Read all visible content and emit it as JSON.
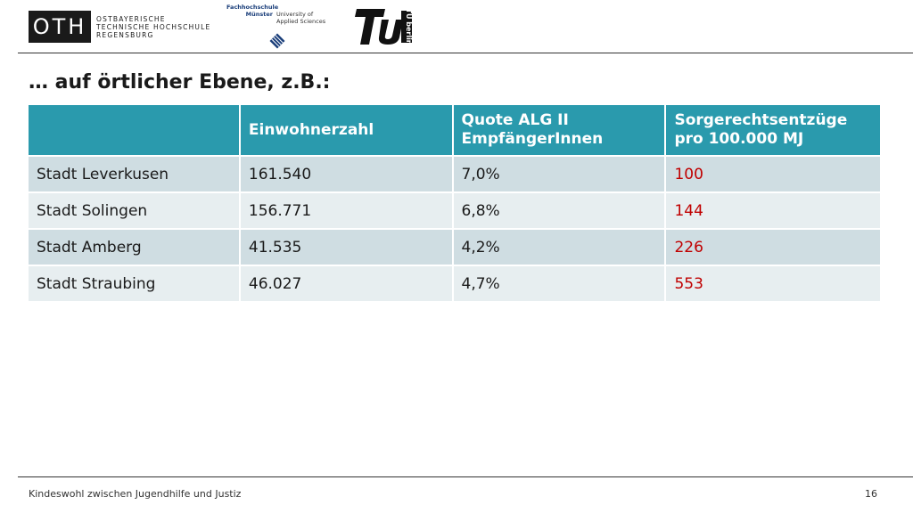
{
  "header": {
    "oth_logo": {
      "mark": "OTH",
      "lines": [
        "OSTBAYERISCHE",
        "TECHNISCHE HOCHSCHULE",
        "REGENSBURG"
      ]
    },
    "fh_logo": {
      "name_lines": [
        "Fachhochschule",
        "Münster"
      ],
      "sub_lines": [
        "University of",
        "Applied Sciences"
      ]
    },
    "tu_logo": {
      "text": "TU berlin"
    }
  },
  "slide": {
    "title": "… auf örtlicher Ebene, z.B.:"
  },
  "table": {
    "headers": [
      "",
      "Einwohnerzahl",
      "Quote ALG II EmpfängerInnen",
      "Sorgerechtsentzüge pro 100.000 MJ"
    ],
    "header_lines": {
      "col3": [
        "Quote ALG II",
        "EmpfängerInnen"
      ],
      "col4": [
        "Sorgerechtsentzüge",
        "pro 100.000 MJ"
      ]
    },
    "rows": [
      {
        "city": "Stadt Leverkusen",
        "population": "161.540",
        "quote": "7,0%",
        "entzuege": "100"
      },
      {
        "city": "Stadt Solingen",
        "population": "156.771",
        "quote": "6,8%",
        "entzuege": "144"
      },
      {
        "city": "Stadt Amberg",
        "population": "41.535",
        "quote": "4,2%",
        "entzuege": "226"
      },
      {
        "city": "Stadt Straubing",
        "population": "46.027",
        "quote": "4,7%",
        "entzuege": "553"
      }
    ]
  },
  "footer": {
    "text": "Kindeswohl zwischen Jugendhilfe und Justiz",
    "page": "16"
  },
  "colors": {
    "header_bg": "#2a9aad",
    "row_odd": "#cfdde2",
    "row_even": "#e7eef0",
    "highlight": "#c00000"
  }
}
